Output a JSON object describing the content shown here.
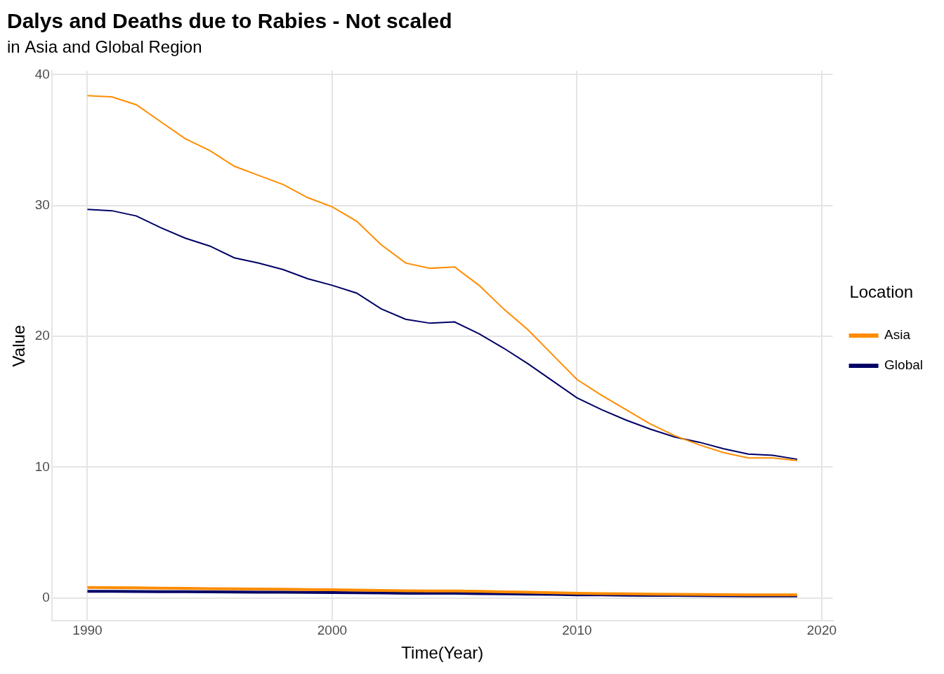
{
  "chart_data": {
    "type": "line",
    "title": "Dalys and Deaths due to Rabies - Not scaled",
    "subtitle": "in Asia and Global Region",
    "x_label": "Time(Year)",
    "y_label": "Value",
    "legend_title": "Location",
    "legend": "right",
    "grid": true,
    "x": [
      1990,
      1991,
      1992,
      1993,
      1994,
      1995,
      1996,
      1997,
      1998,
      1999,
      2000,
      2001,
      2002,
      2003,
      2004,
      2005,
      2006,
      2007,
      2008,
      2009,
      2010,
      2011,
      2012,
      2013,
      2014,
      2015,
      2016,
      2017,
      2018,
      2019
    ],
    "xlim": [
      1988.55,
      2020.45
    ],
    "xticks": [
      1990,
      2000,
      2010,
      2020
    ],
    "ylim": [
      -1.76,
      40.3
    ],
    "yticks": [
      0,
      10,
      20,
      30,
      40
    ],
    "series": [
      {
        "name": "Asia",
        "color": "#ff8c00",
        "values": [
          38.4,
          38.3,
          37.7,
          36.4,
          35.1,
          34.2,
          33.0,
          32.3,
          31.6,
          30.6,
          29.9,
          28.8,
          27.0,
          25.6,
          25.2,
          25.3,
          23.9,
          22.1,
          20.5,
          18.6,
          16.7,
          15.5,
          14.4,
          13.3,
          12.4,
          11.7,
          11.1,
          10.7,
          10.7,
          10.5
        ]
      },
      {
        "name": "Global",
        "color": "#000066",
        "values": [
          29.7,
          29.6,
          29.2,
          28.3,
          27.5,
          26.9,
          26.0,
          25.6,
          25.1,
          24.4,
          23.9,
          23.3,
          22.1,
          21.3,
          21.0,
          21.1,
          20.2,
          19.1,
          17.9,
          16.6,
          15.3,
          14.4,
          13.6,
          12.9,
          12.3,
          11.9,
          11.4,
          11.0,
          10.9,
          10.6
        ]
      },
      {
        "name": "Asia",
        "color": "#ff8c00",
        "values": [
          0.8,
          0.79,
          0.77,
          0.75,
          0.73,
          0.71,
          0.69,
          0.68,
          0.66,
          0.64,
          0.62,
          0.6,
          0.57,
          0.54,
          0.53,
          0.53,
          0.5,
          0.46,
          0.43,
          0.39,
          0.35,
          0.33,
          0.31,
          0.29,
          0.27,
          0.26,
          0.25,
          0.24,
          0.24,
          0.24
        ]
      },
      {
        "name": "Global",
        "color": "#000066",
        "values": [
          0.5,
          0.5,
          0.49,
          0.48,
          0.47,
          0.46,
          0.45,
          0.44,
          0.43,
          0.42,
          0.41,
          0.4,
          0.38,
          0.36,
          0.35,
          0.35,
          0.33,
          0.31,
          0.29,
          0.27,
          0.24,
          0.23,
          0.21,
          0.2,
          0.19,
          0.18,
          0.17,
          0.16,
          0.16,
          0.16
        ]
      }
    ]
  }
}
